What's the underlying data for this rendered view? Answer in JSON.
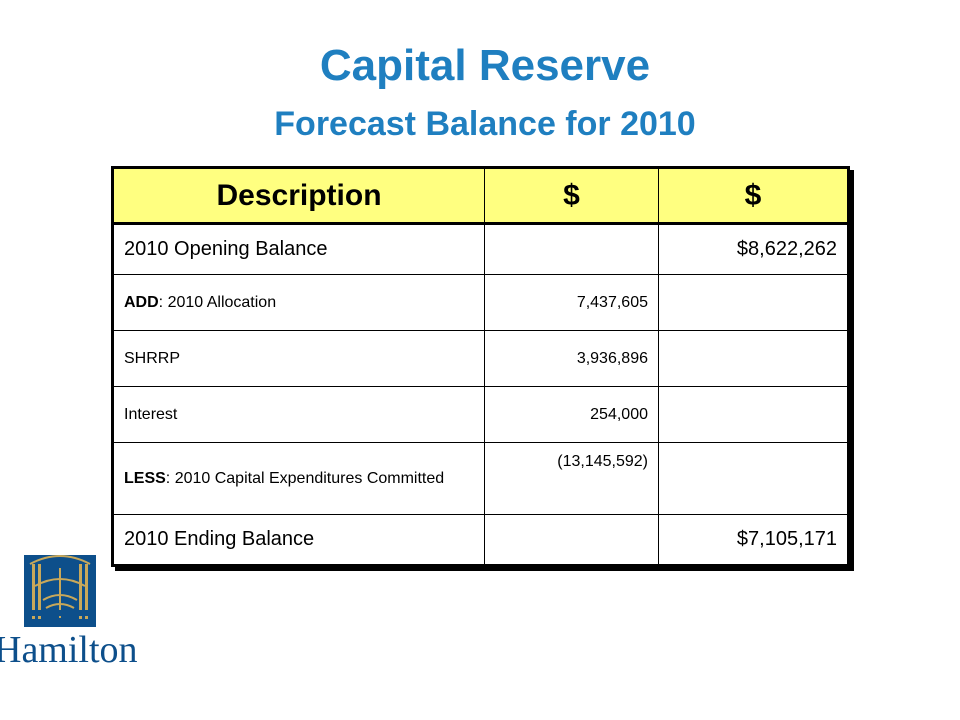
{
  "slide": {
    "title": "Capital Reserve",
    "subtitle": "Forecast Balance for 2010"
  },
  "table": {
    "headers": [
      "Description",
      "$",
      "$"
    ],
    "rows": [
      {
        "desc": "2010 Opening Balance",
        "col1": "",
        "col2": "$8,622,262"
      },
      {
        "prefix": "ADD",
        "desc": ": 2010 Allocation",
        "col1": "7,437,605",
        "col2": ""
      },
      {
        "desc": "SHRRP",
        "col1": "3,936,896",
        "col2": ""
      },
      {
        "desc": "Interest",
        "col1": "254,000",
        "col2": ""
      },
      {
        "prefix": "LESS",
        "desc": ": 2010 Capital Expenditures Committed",
        "col1": "(13,145,592)",
        "col2": ""
      },
      {
        "desc": "2010 Ending Balance",
        "col1": "",
        "col2": "$7,105,171"
      }
    ]
  },
  "logo": {
    "text": "Hamilton",
    "icon": "hamilton-bridge-logo-icon",
    "colors": {
      "blue": "#0d4f8b",
      "gold": "#c8a85a"
    }
  },
  "colors": {
    "title": "#1f7fc0",
    "header_bg": "#ffff80"
  }
}
